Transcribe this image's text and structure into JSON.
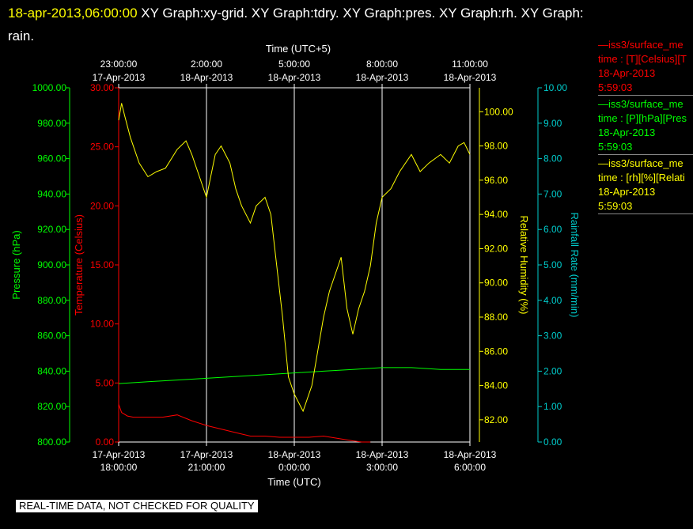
{
  "header": {
    "timestamp": "18-apr-2013,06:00:00",
    "titles": "XY Graph:xy-grid.  XY Graph:tdry.  XY Graph:pres.  XY Graph:rh.  XY Graph:",
    "titles_line2": "rain."
  },
  "legend": [
    {
      "line1": "—iss3/surface_me",
      "line2": "time : [T][Celsius][T",
      "line3": "18-Apr-2013",
      "line4": "5:59:03",
      "color": "#ff0000"
    },
    {
      "line1": "—iss3/surface_me",
      "line2": "time : [P][hPa][Pres",
      "line3": "18-Apr-2013",
      "line4": "5:59:03",
      "color": "#00ff00"
    },
    {
      "line1": "—iss3/surface_me",
      "line2": "time : [rh][%][Relati",
      "line3": "18-Apr-2013",
      "line4": "5:59:03",
      "color": "#ffff00"
    }
  ],
  "disclaimer": "REAL-TIME DATA, NOT CHECKED FOR QUALITY",
  "chart_data": {
    "type": "line",
    "top_axis_title": "Time (UTC+5)",
    "bottom_axis_title": "Time (UTC)",
    "x_range": [
      "17-Apr-2013 18:00:00",
      "18-Apr-2013 06:00:00"
    ],
    "top_ticks": [
      {
        "l1": "23:00:00",
        "l2": "17-Apr-2013"
      },
      {
        "l1": "2:00:00",
        "l2": "18-Apr-2013"
      },
      {
        "l1": "5:00:00",
        "l2": "18-Apr-2013"
      },
      {
        "l1": "8:00:00",
        "l2": "18-Apr-2013"
      },
      {
        "l1": "11:00:00",
        "l2": "18-Apr-2013"
      }
    ],
    "bottom_ticks": [
      {
        "l1": "17-Apr-2013",
        "l2": "18:00:00"
      },
      {
        "l1": "17-Apr-2013",
        "l2": "21:00:00"
      },
      {
        "l1": "18-Apr-2013",
        "l2": "0:00:00"
      },
      {
        "l1": "18-Apr-2013",
        "l2": "3:00:00"
      },
      {
        "l1": "18-Apr-2013",
        "l2": "6:00:00"
      }
    ],
    "grid": true,
    "axes": {
      "pressure": {
        "label": "Pressure (hPa)",
        "range": [
          800,
          1000
        ],
        "ticks": [
          "800.00",
          "820.00",
          "840.00",
          "860.00",
          "880.00",
          "900.00",
          "920.00",
          "940.00",
          "960.00",
          "980.00",
          "1000.00"
        ],
        "color": "#00ff00"
      },
      "temperature": {
        "label": "Temperature (Celsius)",
        "range": [
          0,
          30
        ],
        "ticks": [
          "0.00",
          "5.00",
          "10.00",
          "15.00",
          "20.00",
          "25.00",
          "30.00"
        ],
        "color": "#ff0000"
      },
      "humidity": {
        "label": "Relative Humidity (%)",
        "range": [
          80.7,
          101.4
        ],
        "ticks": [
          "82.00",
          "84.00",
          "86.00",
          "88.00",
          "90.00",
          "92.00",
          "94.00",
          "96.00",
          "98.00",
          "100.00"
        ],
        "color": "#ffff00"
      },
      "rainfall": {
        "label": "Rainfall Rate (mm/min)",
        "range": [
          0,
          10
        ],
        "ticks": [
          "0.00",
          "1.00",
          "2.00",
          "3.00",
          "4.00",
          "5.00",
          "6.00",
          "7.00",
          "8.00",
          "9.00",
          "10.00"
        ],
        "color": "#00cccc"
      }
    },
    "series": [
      {
        "name": "Temperature",
        "axis": "temperature",
        "color": "#ff0000",
        "x": [
          0,
          0.1,
          0.3,
          0.5,
          1,
          1.5,
          2,
          2.5,
          3,
          3.5,
          4,
          4.5,
          5,
          5.5,
          6,
          6.5,
          7,
          7.5,
          8,
          8.3,
          8.6
        ],
        "y": [
          3.2,
          2.5,
          2.2,
          2.1,
          2.1,
          2.1,
          2.3,
          1.8,
          1.4,
          1.1,
          0.8,
          0.5,
          0.5,
          0.4,
          0.4,
          0.4,
          0.5,
          0.3,
          0.1,
          0.0,
          0.0
        ]
      },
      {
        "name": "Pressure",
        "axis": "pressure",
        "color": "#00ff00",
        "x": [
          0,
          1,
          2,
          3,
          4,
          5,
          6,
          7,
          8,
          9,
          10,
          11,
          12
        ],
        "y": [
          833,
          834,
          835,
          836,
          837,
          838,
          839,
          840,
          841,
          842,
          842,
          841,
          841
        ]
      },
      {
        "name": "Relative Humidity",
        "axis": "humidity",
        "color": "#ffff00",
        "x": [
          0,
          0.1,
          0.2,
          0.4,
          0.7,
          1.0,
          1.3,
          1.6,
          2.0,
          2.3,
          2.5,
          2.7,
          3.0,
          3.3,
          3.5,
          3.8,
          4.0,
          4.2,
          4.5,
          4.7,
          5.0,
          5.2,
          5.4,
          5.6,
          5.8,
          6.0,
          6.3,
          6.6,
          6.8,
          7.0,
          7.2,
          7.4,
          7.6,
          7.8,
          8.0,
          8.2,
          8.4,
          8.6,
          8.8,
          9.0,
          9.3,
          9.6,
          10.0,
          10.3,
          10.6,
          11.0,
          11.3,
          11.6,
          11.8,
          12.0
        ],
        "y": [
          99.5,
          100.5,
          99.8,
          98.5,
          97.0,
          96.2,
          96.5,
          96.7,
          97.8,
          98.3,
          97.5,
          96.5,
          95.0,
          97.5,
          98.0,
          97.0,
          95.5,
          94.5,
          93.5,
          94.5,
          95.0,
          94.0,
          91.0,
          88.0,
          84.5,
          83.5,
          82.5,
          84.0,
          86.0,
          88.0,
          89.5,
          90.5,
          91.5,
          88.5,
          87.0,
          88.5,
          89.5,
          91.0,
          93.5,
          95.0,
          95.5,
          96.5,
          97.5,
          96.5,
          97.0,
          97.5,
          97.0,
          98.0,
          98.2,
          97.5
        ]
      }
    ]
  }
}
